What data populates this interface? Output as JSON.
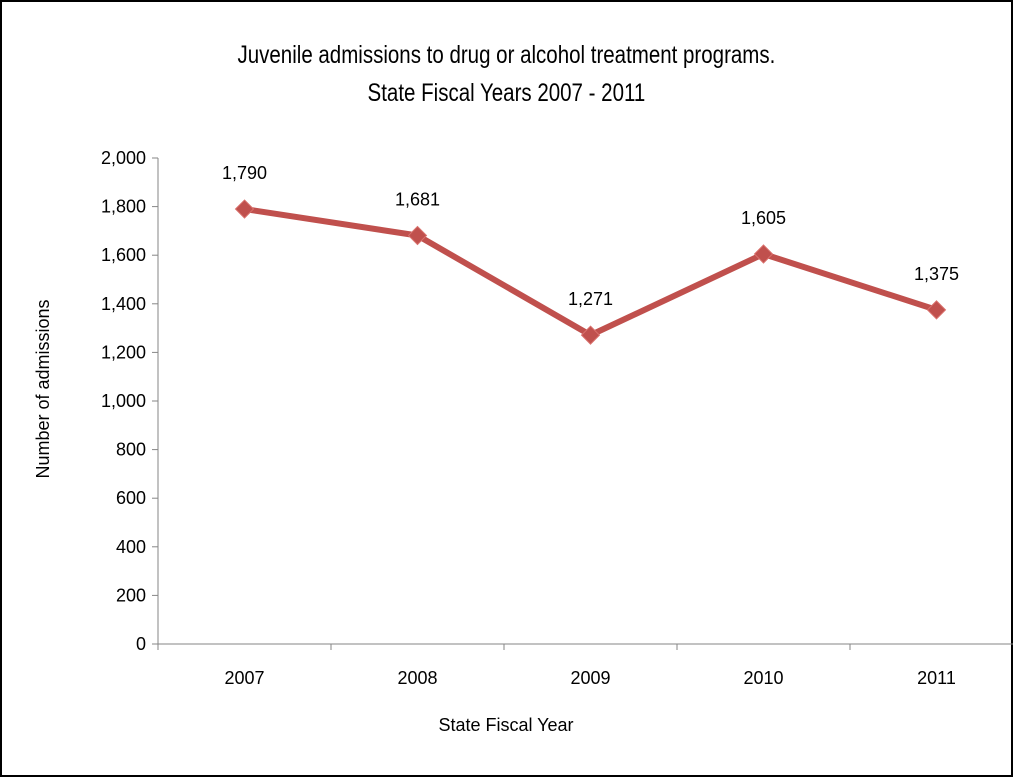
{
  "chart_data": {
    "type": "line",
    "title": "Juvenile admissions to drug or alcohol treatment programs.",
    "subtitle": "State Fiscal Years 2007 - 2011",
    "xlabel": "State Fiscal Year",
    "ylabel": "Number of admissions",
    "categories": [
      "2007",
      "2008",
      "2009",
      "2010",
      "2011"
    ],
    "series": [
      {
        "values": [
          1790,
          1681,
          1271,
          1605,
          1375
        ],
        "labels": [
          "1,790",
          "1,681",
          "1,271",
          "1,605",
          "1,375"
        ],
        "color": "#C0504D"
      }
    ],
    "ylim": [
      0,
      2000
    ],
    "yticks": [
      0,
      200,
      400,
      600,
      800,
      1000,
      1200,
      1400,
      1600,
      1800,
      2000
    ],
    "ytick_labels": [
      "0",
      "200",
      "400",
      "600",
      "800",
      "1,000",
      "1,200",
      "1,400",
      "1,600",
      "1,800",
      "2,000"
    ],
    "grid": false,
    "legend": "none",
    "axis_color": "#868686"
  }
}
